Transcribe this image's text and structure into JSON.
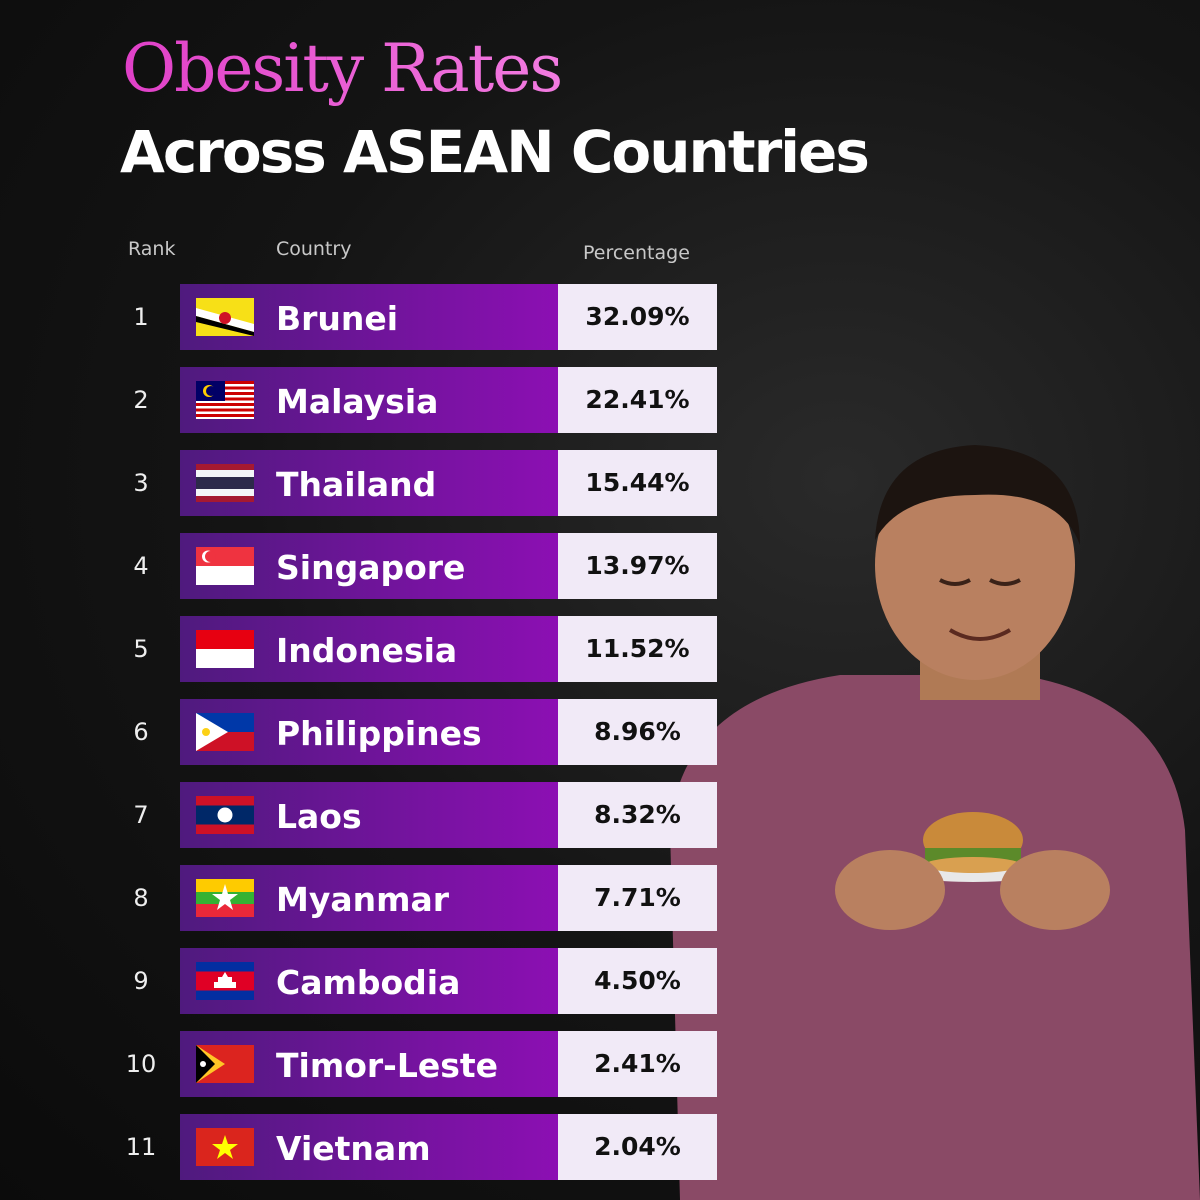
{
  "header": {
    "title": "Obesity Rates",
    "subtitle": "Across ASEAN Countries"
  },
  "table": {
    "columns": [
      "Rank",
      "Country",
      "Percentage"
    ],
    "rows": [
      [
        "1",
        "Brunei",
        "32.09%"
      ],
      [
        "2",
        "Malaysia",
        "22.41%"
      ],
      [
        "3",
        "Thailand",
        "15.44%"
      ],
      [
        "4",
        "Singapore",
        "13.97%"
      ],
      [
        "5",
        "Indonesia",
        "11.52%"
      ],
      [
        "6",
        "Philippines",
        "8.96%"
      ],
      [
        "7",
        "Laos",
        "8.32%"
      ],
      [
        "8",
        "Myanmar",
        "7.71%"
      ],
      [
        "9",
        "Cambodia",
        "4.50%"
      ],
      [
        "10",
        "Timor-Leste",
        "2.41%"
      ],
      [
        "11",
        "Vietnam",
        "2.04%"
      ]
    ]
  }
}
